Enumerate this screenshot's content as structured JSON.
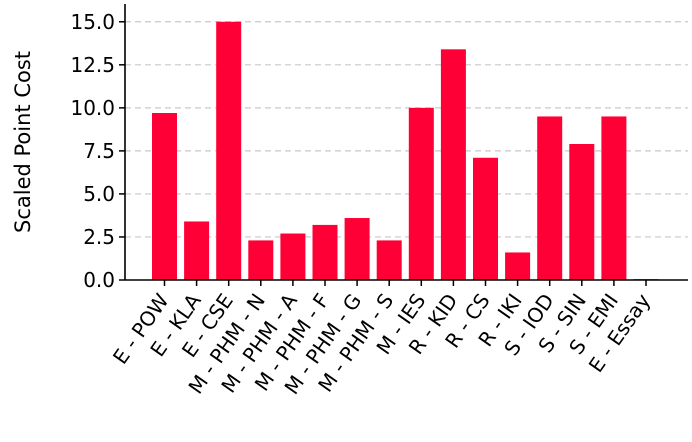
{
  "chart_data": {
    "type": "bar",
    "title": "",
    "xlabel": "",
    "ylabel": "Scaled Point Cost",
    "categories": [
      "E - POW",
      "E - KLA",
      "E - CSE",
      "M - PHM - N",
      "M - PHM - A",
      "M - PHM - F",
      "M - PHM - G",
      "M - PHM - S",
      "M - IES",
      "R - KID",
      "R - CS",
      "R - IKI",
      "S - IOD",
      "S - SIN",
      "S - EMI",
      "E - Essay"
    ],
    "values": [
      9.7,
      3.4,
      15.0,
      2.3,
      2.7,
      3.2,
      3.6,
      2.3,
      10.0,
      13.4,
      7.1,
      1.6,
      9.5,
      7.9,
      9.5,
      0.05
    ],
    "ylim": [
      0,
      15.8
    ],
    "yticks": [
      "0.0",
      "2.5",
      "5.0",
      "7.5",
      "10.0",
      "12.5",
      "15.0"
    ],
    "grid": "horizontal dashed",
    "bar_color": "#ff0036",
    "grid_color": "#c8c8c8",
    "axis_color": "#000000"
  }
}
